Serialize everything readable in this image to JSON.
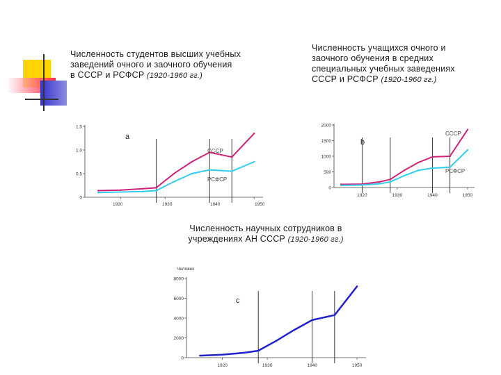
{
  "slide": {
    "decoration_colors": {
      "yellow": "#ffd400",
      "red": "#ff2040",
      "blue": "#3333cc",
      "line": "#333333"
    }
  },
  "chart_data": [
    {
      "id": "a",
      "type": "line",
      "letter": "a",
      "title_line1": "Численность студентов высших учебных",
      "title_line2": "заведений очного и заочного обучения",
      "title_line3": "в СССР и РСФСР",
      "title_years": "(1920-1960 гг.)",
      "x": [
        1915,
        1920,
        1925,
        1928,
        1932,
        1936,
        1940,
        1945,
        1950
      ],
      "xlim": [
        1912,
        1952
      ],
      "ylim": [
        0,
        1.5
      ],
      "x_ticks": [
        1920,
        1930,
        1940,
        1950
      ],
      "x_tick_labels": [
        "1920",
        "1930",
        "1940",
        "1950"
      ],
      "y_ticks": [
        0,
        0.5,
        1.0,
        1.5
      ],
      "y_tick_labels": [
        "0",
        "0,5",
        "1,0",
        "1,5"
      ],
      "vlines": [
        1928,
        1940,
        1945
      ],
      "series": [
        {
          "name": "СССР",
          "color": "#cc2277",
          "values": [
            0.14,
            0.15,
            0.18,
            0.2,
            0.5,
            0.75,
            0.95,
            0.85,
            1.35
          ]
        },
        {
          "name": "РСФСР",
          "color": "#33ccee",
          "values": [
            0.1,
            0.11,
            0.12,
            0.14,
            0.33,
            0.5,
            0.58,
            0.55,
            0.75
          ]
        }
      ]
    },
    {
      "id": "b",
      "type": "line",
      "letter": "b",
      "title_line1": "Численность учащихся очного и",
      "title_line2": "заочного обучения в средних",
      "title_line3": "специальных учебных заведениях",
      "title_line4": "СССР и РСФСР",
      "title_years": "(1920-1960 гг.)",
      "x": [
        1914,
        1920,
        1925,
        1928,
        1932,
        1936,
        1940,
        1945,
        1950
      ],
      "xlim": [
        1912,
        1952
      ],
      "ylim": [
        0,
        2000
      ],
      "x_ticks": [
        1920,
        1930,
        1940,
        1950
      ],
      "x_tick_labels": [
        "1920",
        "1930",
        "1940",
        "1950"
      ],
      "y_ticks": [
        0,
        500,
        1000,
        1500,
        2000
      ],
      "y_tick_labels": [
        "0",
        "500",
        "1000",
        "1500",
        "2000"
      ],
      "vlines": [
        1920,
        1928,
        1940,
        1945
      ],
      "series": [
        {
          "name": "СССР",
          "color": "#cc2277",
          "values": [
            100,
            110,
            180,
            260,
            550,
            800,
            980,
            1000,
            1850
          ]
        },
        {
          "name": "РСФСР",
          "color": "#33ccee",
          "values": [
            70,
            80,
            120,
            180,
            380,
            550,
            620,
            650,
            1200
          ]
        }
      ]
    },
    {
      "id": "c",
      "type": "line",
      "letter": "с",
      "title_line1": "Численность научных сотрудников в",
      "title_line2": "учреждениях АН СССР",
      "title_years": "(1920-1960 гг.)",
      "ylabel": "Человек",
      "x": [
        1915,
        1920,
        1925,
        1928,
        1932,
        1936,
        1940,
        1945,
        1950
      ],
      "xlim": [
        1912,
        1952
      ],
      "ylim": [
        0,
        8000
      ],
      "x_ticks": [
        1920,
        1930,
        1940,
        1950
      ],
      "x_tick_labels": [
        "1920",
        "1930",
        "1940",
        "1950"
      ],
      "y_ticks": [
        0,
        2000,
        4000,
        6000,
        8000
      ],
      "y_tick_labels": [
        "0",
        "2000",
        "4000",
        "6000",
        "8000"
      ],
      "vlines": [
        1928,
        1940,
        1945
      ],
      "series": [
        {
          "name": "АН СССР",
          "color": "#2222cc",
          "values": [
            200,
            300,
            500,
            700,
            1700,
            2800,
            3800,
            4300,
            7200
          ]
        }
      ]
    }
  ]
}
